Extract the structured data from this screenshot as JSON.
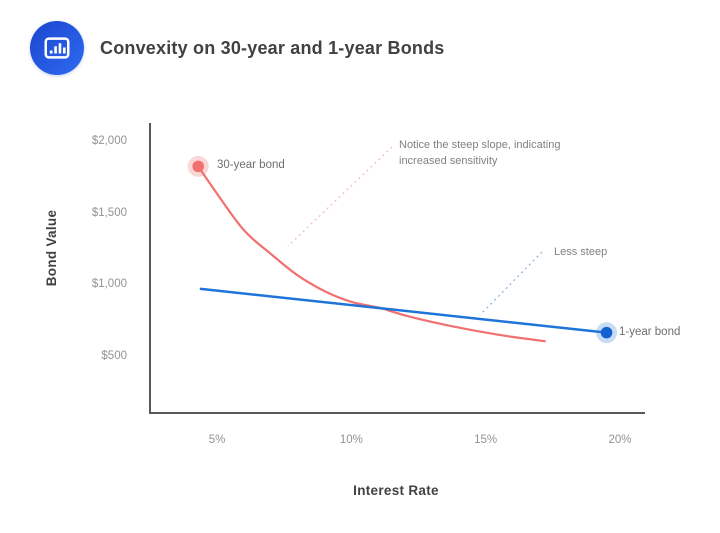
{
  "header": {
    "title": "Convexity on 30-year and 1-year Bonds",
    "icon": "bar-chart-icon",
    "icon_gradient": {
      "from": "#1b45cf",
      "to": "#2e6bf0"
    }
  },
  "chart_data": {
    "type": "line",
    "title": "Convexity on 30-year and 1-year Bonds",
    "xlabel": "Interest Rate",
    "ylabel": "Bond Value",
    "xlim": [
      2.5,
      21
    ],
    "ylim": [
      100,
      2130
    ],
    "grid": false,
    "legend_position": "inline-labels",
    "x_ticks": [
      {
        "label": "5%",
        "value": 5
      },
      {
        "label": "10%",
        "value": 10
      },
      {
        "label": "15%",
        "value": 15
      },
      {
        "label": "20%",
        "value": 20
      }
    ],
    "y_ticks": [
      {
        "label": "$2,000",
        "value": 2000
      },
      {
        "label": "$1,500",
        "value": 1500
      },
      {
        "label": "$1,000",
        "value": 1000
      },
      {
        "label": "$500",
        "value": 500
      }
    ],
    "series": [
      {
        "name": "30-year bond",
        "color": "#f0716f",
        "marker_color": "#f0716f",
        "halo_color": "rgba(242,112,110,0.28)",
        "style": "smooth-curve",
        "marker": "start",
        "points": [
          [
            4.3,
            1830
          ],
          [
            5,
            1640
          ],
          [
            6,
            1385
          ],
          [
            7,
            1220
          ],
          [
            8,
            1070
          ],
          [
            9,
            960
          ],
          [
            10,
            885
          ],
          [
            11,
            845
          ],
          [
            12,
            790
          ],
          [
            13,
            745
          ],
          [
            14,
            705
          ],
          [
            15,
            670
          ],
          [
            16,
            640
          ],
          [
            17.2,
            610
          ]
        ]
      },
      {
        "name": "1-year bond",
        "color": "#1e74d8",
        "marker_color": "#1361d1",
        "halo_color": "rgba(40,115,215,0.25)",
        "style": "straight-line",
        "marker": "end",
        "points": [
          [
            4.4,
            975
          ],
          [
            19.5,
            670
          ]
        ]
      }
    ],
    "annotations": [
      {
        "text": "Notice the steep slope, indicating increased sensitivity",
        "leader_color": "#f2b9b9",
        "target_series": "30-year bond"
      },
      {
        "text": "Less steep",
        "leader_color": "#85aede",
        "target_series": "1-year bond"
      }
    ],
    "axis_color": "#58585a"
  }
}
